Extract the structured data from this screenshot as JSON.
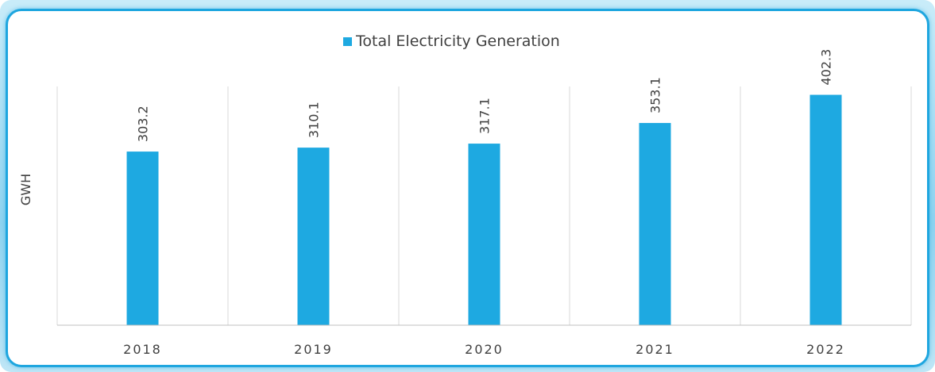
{
  "chart_data": {
    "type": "bar",
    "categories": [
      "2018",
      "2019",
      "2020",
      "2021",
      "2022"
    ],
    "series": [
      {
        "name": "Total Electricity Generation",
        "values": [
          303.2,
          310.1,
          317.1,
          353.1,
          402.3
        ],
        "color": "#1ea9e1"
      }
    ],
    "data_labels": [
      "303.2",
      "310.1",
      "317.1",
      "353.1",
      "402.3"
    ],
    "ylabel": "GWH",
    "xlabel": "",
    "ylim": [
      0,
      500
    ],
    "grid": "vertical category separators",
    "legend_position": "top-center",
    "axis_color": "#bfbfbf",
    "text_color": "#404040"
  }
}
